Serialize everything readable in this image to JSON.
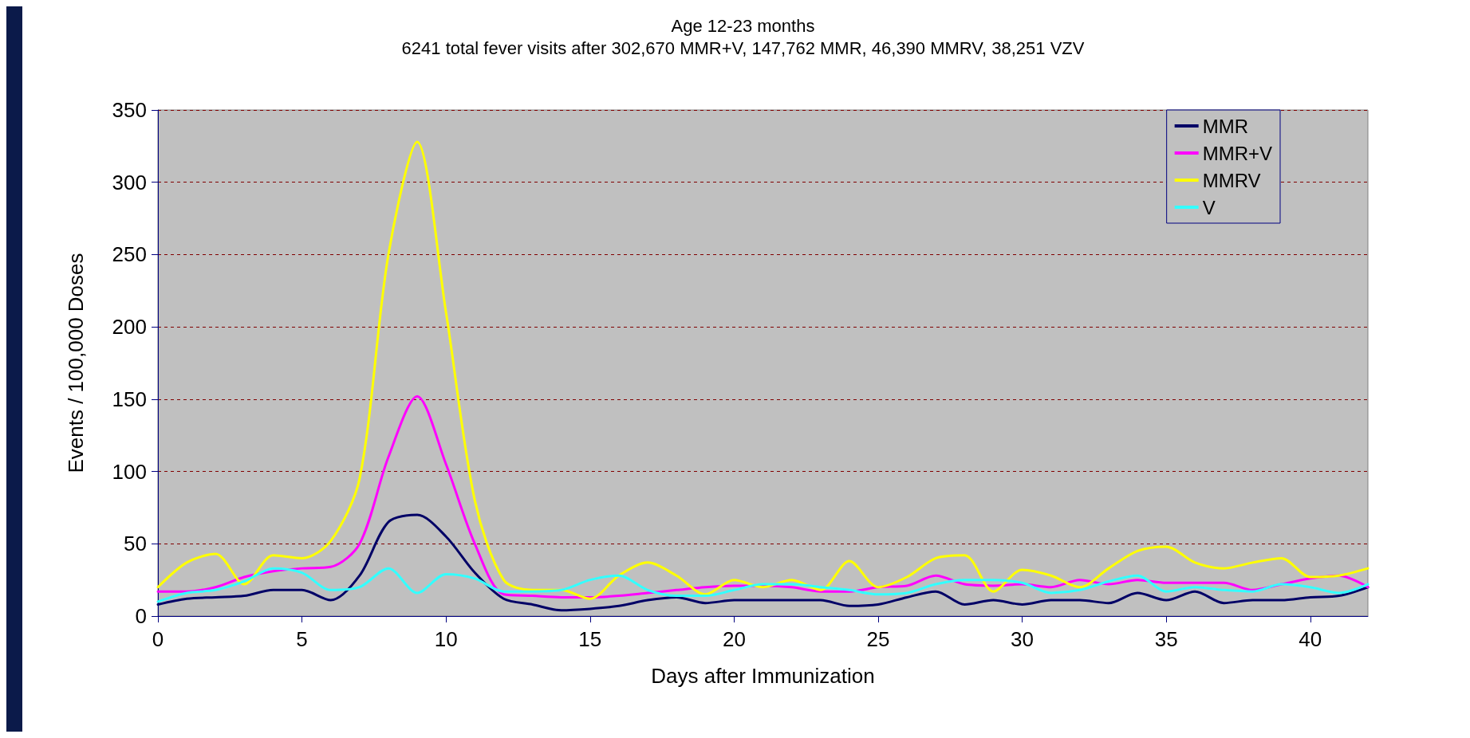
{
  "chart_data": {
    "type": "line",
    "title": "Age 12-23 months",
    "subtitle": "6241 total fever visits after 302,670 MMR+V, 147,762 MMR, 46,390 MMRV, 38,251 VZV",
    "xlabel": "Days after Immunization",
    "ylabel": "Events / 100,000 Doses",
    "x": [
      0,
      1,
      2,
      3,
      4,
      5,
      6,
      7,
      8,
      9,
      10,
      11,
      12,
      13,
      14,
      15,
      16,
      17,
      18,
      19,
      20,
      21,
      22,
      23,
      24,
      25,
      26,
      27,
      28,
      29,
      30,
      31,
      32,
      33,
      34,
      35,
      36,
      37,
      38,
      39,
      40,
      41,
      42
    ],
    "series": [
      {
        "name": "MMR",
        "color": "#000066",
        "values": [
          8,
          12,
          13,
          14,
          18,
          18,
          11,
          28,
          65,
          70,
          55,
          30,
          12,
          8,
          4,
          5,
          7,
          11,
          13,
          9,
          11,
          11,
          11,
          11,
          7,
          8,
          13,
          17,
          8,
          11,
          8,
          11,
          11,
          9,
          16,
          11,
          17,
          9,
          11,
          11,
          13,
          14,
          20
        ]
      },
      {
        "name": "MMR+V",
        "color": "#ff00ff",
        "values": [
          17,
          17,
          20,
          27,
          31,
          33,
          34,
          50,
          110,
          152,
          105,
          50,
          15,
          14,
          13,
          13,
          14,
          16,
          18,
          20,
          21,
          21,
          20,
          17,
          17,
          20,
          21,
          28,
          22,
          21,
          22,
          20,
          25,
          22,
          25,
          23,
          23,
          23,
          18,
          22,
          26,
          28,
          20
        ]
      },
      {
        "name": "MMRV",
        "color": "#ffff00",
        "values": [
          20,
          37,
          43,
          22,
          42,
          40,
          52,
          95,
          250,
          328,
          210,
          80,
          25,
          18,
          18,
          12,
          28,
          37,
          28,
          15,
          25,
          20,
          25,
          18,
          38,
          20,
          27,
          40,
          42,
          17,
          32,
          28,
          20,
          33,
          45,
          48,
          37,
          33,
          37,
          40,
          27,
          28,
          33
        ]
      },
      {
        "name": "V",
        "color": "#33ffff",
        "values": [
          10,
          16,
          18,
          24,
          33,
          30,
          18,
          20,
          33,
          16,
          29,
          26,
          17,
          17,
          18,
          25,
          28,
          18,
          14,
          14,
          18,
          22,
          22,
          20,
          18,
          15,
          16,
          22,
          25,
          25,
          23,
          16,
          18,
          24,
          28,
          17,
          20,
          18,
          17,
          22,
          20,
          16,
          22
        ]
      }
    ],
    "xlim": [
      0,
      42
    ],
    "xticks": [
      0,
      5,
      10,
      15,
      20,
      25,
      30,
      35,
      40
    ],
    "ylim": [
      0,
      350
    ],
    "yticks": [
      0,
      50,
      100,
      150,
      200,
      250,
      300,
      350
    ],
    "grid": "y",
    "legend": "top right",
    "marker": "none",
    "line_style": "solid"
  }
}
